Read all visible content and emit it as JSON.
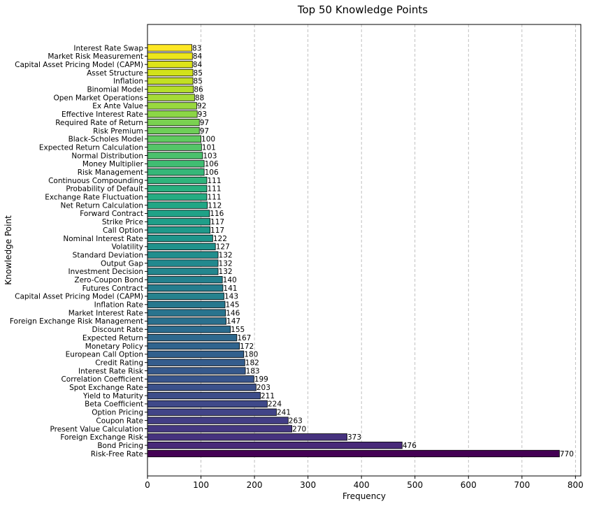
{
  "chart_data": {
    "type": "bar",
    "orientation": "horizontal",
    "title": "Top 50 Knowledge Points",
    "xlabel": "Frequency",
    "ylabel": "Knowledge Point",
    "xlim": [
      0,
      810
    ],
    "xticks": [
      0,
      100,
      200,
      300,
      400,
      500,
      600,
      700,
      800
    ],
    "grid": "x-dashed",
    "colormap": "viridis",
    "categories": [
      "Interest Rate Swap",
      "Market Risk Measurement",
      "Capital Asset Pricing Model (CAPM)",
      "Asset Structure",
      "Inflation",
      "Binomial Model",
      "Open Market Operations",
      "Ex Ante Value",
      "Effective Interest Rate",
      "Required Rate of Return",
      "Risk Premium",
      "Black-Scholes Model",
      "Expected Return Calculation",
      "Normal Distribution",
      "Money Multiplier",
      "Risk Management",
      "Continuous Compounding",
      "Probability of Default",
      "Exchange Rate Fluctuation",
      "Net Return Calculation",
      "Forward Contract",
      "Strike Price",
      "Call Option",
      "Nominal Interest Rate",
      "Volatility",
      "Standard Deviation",
      "Output Gap",
      "Investment Decision",
      "Zero-Coupon Bond",
      "Futures Contract",
      "Capital Asset Pricing Model (CAPM)",
      "Inflation Rate",
      "Market Interest Rate",
      "Foreign Exchange Risk Management",
      "Discount Rate",
      "Expected Return",
      "Monetary Policy",
      "European Call Option",
      "Credit Rating",
      "Interest Rate Risk",
      "Correlation Coefficient",
      "Spot Exchange Rate",
      "Yield to Maturity",
      "Beta Coefficient",
      "Option Pricing",
      "Coupon Rate",
      "Present Value Calculation",
      "Foreign Exchange Risk",
      "Bond Pricing",
      "Risk-Free Rate"
    ],
    "values": [
      83,
      84,
      84,
      85,
      85,
      86,
      88,
      92,
      93,
      97,
      97,
      100,
      101,
      103,
      106,
      106,
      111,
      111,
      111,
      112,
      116,
      117,
      117,
      122,
      127,
      132,
      132,
      132,
      140,
      141,
      143,
      145,
      146,
      147,
      155,
      167,
      172,
      180,
      182,
      183,
      199,
      203,
      211,
      224,
      241,
      263,
      270,
      373,
      476,
      770
    ],
    "colors": [
      "#fde725",
      "#ece51b",
      "#dde318",
      "#d2e21b",
      "#c2df23",
      "#b5de2b",
      "#a5db36",
      "#98d83e",
      "#8bd646",
      "#7ad151",
      "#6ece58",
      "#60ca60",
      "#54c568",
      "#4ac16d",
      "#40bd72",
      "#35b779",
      "#2fb47c",
      "#29af7f",
      "#25ac82",
      "#21a685",
      "#1fa287",
      "#1f9e89",
      "#1f998a",
      "#1f958b",
      "#20928c",
      "#218e8d",
      "#22898e",
      "#23868e",
      "#24818e",
      "#257d8e",
      "#26828e",
      "#27788e",
      "#29748e",
      "#2a708e",
      "#2c6c8e",
      "#2e698e",
      "#30648e",
      "#32608d",
      "#345d8d",
      "#36598c",
      "#38558c",
      "#3b518b",
      "#3d4d8a",
      "#3f4989",
      "#414487",
      "#433e85",
      "#453882",
      "#46327e",
      "#482979",
      "#440154"
    ]
  }
}
